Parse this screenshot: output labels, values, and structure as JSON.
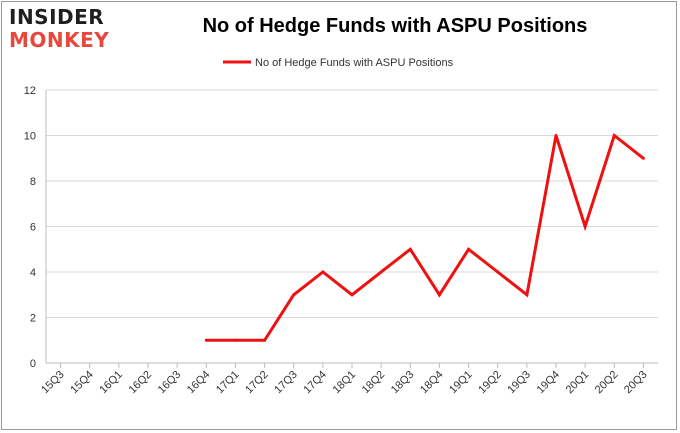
{
  "logo": {
    "line1": "INSIDER",
    "line2": "MONKEY"
  },
  "chart_data": {
    "type": "line",
    "title": "No of Hedge Funds with ASPU Positions",
    "xlabel": "",
    "ylabel": "",
    "categories": [
      "15Q3",
      "15Q4",
      "16Q1",
      "16Q2",
      "16Q3",
      "16Q4",
      "17Q1",
      "17Q2",
      "17Q3",
      "17Q4",
      "18Q1",
      "18Q2",
      "18Q3",
      "18Q4",
      "19Q1",
      "19Q2",
      "19Q3",
      "19Q4",
      "20Q1",
      "20Q2",
      "20Q3"
    ],
    "series": [
      {
        "name": "No of Hedge Funds with ASPU Positions",
        "color": "#ee1111",
        "values": [
          null,
          null,
          null,
          null,
          null,
          1,
          1,
          1,
          3,
          4,
          3,
          4,
          5,
          3,
          5,
          4,
          3,
          10,
          6,
          10,
          9
        ]
      }
    ],
    "ylim": [
      0,
      12
    ],
    "yticks": [
      0,
      2,
      4,
      6,
      8,
      10,
      12
    ],
    "grid": true,
    "legend": "top-center"
  }
}
